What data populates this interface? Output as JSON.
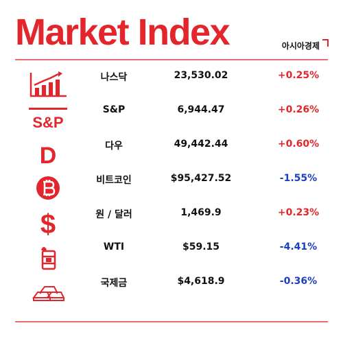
{
  "header": {
    "title": "Market Index",
    "brand": "아시아경제"
  },
  "colors": {
    "accent": "#e3262b",
    "up": "#e3262b",
    "down": "#1b3fbf"
  },
  "rows": [
    {
      "icon": "bar-chart-icon",
      "name": "나스닥",
      "value": "23,530.02",
      "change": "+0.25%"
    },
    {
      "icon": "s-and-p-icon",
      "icon_text": "S&P",
      "name": "S&P",
      "value": "6,944.47",
      "change": "+0.26%"
    },
    {
      "icon": "letter-d-icon",
      "icon_text": "D",
      "name": "다우",
      "value": "49,442.44",
      "change": "+0.60%"
    },
    {
      "icon": "bitcoin-icon",
      "name": "비트코인",
      "value": "$95,427.52",
      "change": "-1.55%"
    },
    {
      "icon": "dollar-icon",
      "icon_text": "$",
      "name": "원 / 달러",
      "value": "1,469.9",
      "change": "+0.23%"
    },
    {
      "icon": "oil-barrel-icon",
      "name": "WTI",
      "value": "$59.15",
      "change": "-4.41%"
    },
    {
      "icon": "gold-bars-icon",
      "name": "국제금",
      "value": "$4,618.9",
      "change": "-0.36%"
    }
  ]
}
